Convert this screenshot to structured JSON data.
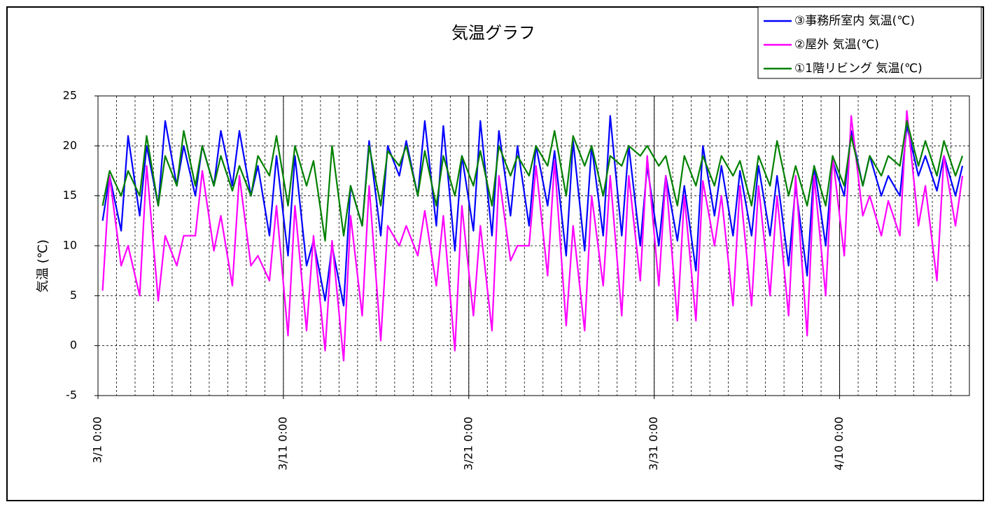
{
  "chart_data": {
    "type": "line",
    "title": "気温グラフ",
    "y_label": "気温 (℃)",
    "x": [
      "3/1 6:00",
      "3/1 15:00",
      "3/2 6:00",
      "3/2 15:00",
      "3/3 6:00",
      "3/3 15:00",
      "3/4 6:00",
      "3/4 15:00",
      "3/5 6:00",
      "3/5 15:00",
      "3/6 6:00",
      "3/6 15:00",
      "3/7 6:00",
      "3/7 15:00",
      "3/8 6:00",
      "3/8 15:00",
      "3/9 6:00",
      "3/9 15:00",
      "3/10 6:00",
      "3/10 15:00",
      "3/11 6:00",
      "3/11 15:00",
      "3/12 6:00",
      "3/12 15:00",
      "3/13 6:00",
      "3/13 15:00",
      "3/14 6:00",
      "3/14 15:00",
      "3/15 6:00",
      "3/15 15:00",
      "3/16 6:00",
      "3/16 15:00",
      "3/17 6:00",
      "3/17 15:00",
      "3/18 6:00",
      "3/18 15:00",
      "3/19 6:00",
      "3/19 15:00",
      "3/20 6:00",
      "3/20 15:00",
      "3/21 6:00",
      "3/21 15:00",
      "3/22 6:00",
      "3/22 15:00",
      "3/23 6:00",
      "3/23 15:00",
      "3/24 6:00",
      "3/24 15:00",
      "3/25 6:00",
      "3/25 15:00",
      "3/26 6:00",
      "3/26 15:00",
      "3/27 6:00",
      "3/27 15:00",
      "3/28 6:00",
      "3/28 15:00",
      "3/29 6:00",
      "3/29 15:00",
      "3/30 6:00",
      "3/30 15:00",
      "3/31 6:00",
      "3/31 15:00",
      "4/1 6:00",
      "4/1 15:00",
      "4/2 6:00",
      "4/2 15:00",
      "4/3 6:00",
      "4/3 15:00",
      "4/4 6:00",
      "4/4 15:00",
      "4/5 6:00",
      "4/5 15:00",
      "4/6 6:00",
      "4/6 15:00",
      "4/7 6:00",
      "4/7 15:00",
      "4/8 6:00",
      "4/8 15:00",
      "4/9 6:00",
      "4/9 15:00",
      "4/10 6:00",
      "4/10 15:00",
      "4/11 6:00",
      "4/11 15:00",
      "4/12 6:00",
      "4/12 15:00",
      "4/13 6:00",
      "4/13 15:00",
      "4/14 6:00",
      "4/14 15:00",
      "4/15 6:00",
      "4/15 15:00",
      "4/16 6:00",
      "4/16 15:00"
    ],
    "series": [
      {
        "name": "③事務所室内 気温(℃)",
        "color": "#0000ff",
        "values": [
          12.5,
          17,
          11.5,
          21,
          13,
          20,
          14,
          22.5,
          16,
          20,
          15,
          20,
          16,
          21.5,
          16,
          21.5,
          15,
          18,
          11,
          19,
          9,
          19,
          8,
          10.5,
          4.5,
          10,
          4,
          16,
          12,
          20.5,
          11,
          20,
          17,
          20.5,
          15,
          22.5,
          12,
          22,
          9.5,
          19,
          11.5,
          22.5,
          11,
          21.5,
          13,
          20,
          12,
          20,
          14,
          19.5,
          9,
          20.5,
          9.5,
          20,
          11,
          23,
          11,
          20,
          10,
          18,
          10,
          17,
          10.5,
          16,
          7.5,
          20,
          13,
          18,
          11,
          17.5,
          11,
          18,
          11,
          17,
          8,
          16,
          7,
          18,
          10,
          18.5,
          15,
          21.5,
          16,
          19,
          15,
          17,
          15,
          22,
          17,
          19,
          15.5,
          19,
          15,
          18
        ]
      },
      {
        "name": "②屋外 気温(℃)",
        "color": "#ff00ff",
        "values": [
          5.5,
          17,
          8,
          10,
          5,
          18,
          4.5,
          11,
          8,
          11,
          11,
          17.5,
          9.5,
          13,
          6,
          17,
          8,
          9,
          6.5,
          14,
          1,
          14,
          1.5,
          11,
          -0.5,
          10.5,
          -1.5,
          13,
          3,
          16,
          0.5,
          12,
          10,
          12,
          9,
          13.5,
          6,
          13,
          -0.5,
          14,
          3,
          12,
          1.5,
          17,
          8.5,
          10,
          10,
          18,
          7,
          18.5,
          2,
          12,
          1.5,
          15,
          6,
          17,
          3,
          17,
          6.5,
          19,
          6,
          17,
          2.5,
          15,
          2.5,
          16.5,
          10,
          15,
          4,
          16,
          4,
          16,
          5,
          15,
          3,
          17,
          1,
          17,
          5,
          19,
          9,
          23,
          13,
          15,
          11,
          14.5,
          11,
          23.5,
          12,
          16,
          6.5,
          19,
          12,
          17
        ]
      },
      {
        "name": "①1階リビング 気温(℃)",
        "color": "#008000",
        "values": [
          14,
          17.5,
          15,
          17.5,
          15,
          21,
          14,
          19,
          16,
          21.5,
          16,
          20,
          16,
          19,
          15.5,
          18,
          15,
          19,
          17,
          21,
          14,
          20,
          16,
          18.5,
          10.5,
          20,
          11,
          16,
          12,
          20,
          14,
          19.5,
          18,
          20,
          15,
          19.5,
          14,
          19,
          15,
          19,
          16,
          19.5,
          14,
          20,
          17,
          19,
          17,
          20,
          18,
          21.5,
          15,
          21,
          18,
          20,
          15,
          19,
          18,
          20,
          19,
          20,
          18,
          19,
          14,
          19,
          16,
          19,
          16,
          19,
          17,
          18.5,
          14,
          19,
          16,
          20.5,
          15,
          18,
          14,
          18,
          14,
          19,
          16,
          21,
          16,
          19,
          17,
          19,
          18,
          22.5,
          18,
          20.5,
          17,
          20.5,
          17,
          19
        ]
      }
    ],
    "xlim": [
      "3/1 0:00",
      "4/17 0:00"
    ],
    "xticks": [
      "3/1 0:00",
      "3/11 0:00",
      "3/21 0:00",
      "3/31 0:00",
      "4/10 0:00"
    ],
    "ylim": [
      -5,
      25
    ],
    "yticks": [
      -5,
      0,
      5,
      10,
      15,
      20,
      25
    ],
    "grid": true,
    "legend": "top-right"
  }
}
